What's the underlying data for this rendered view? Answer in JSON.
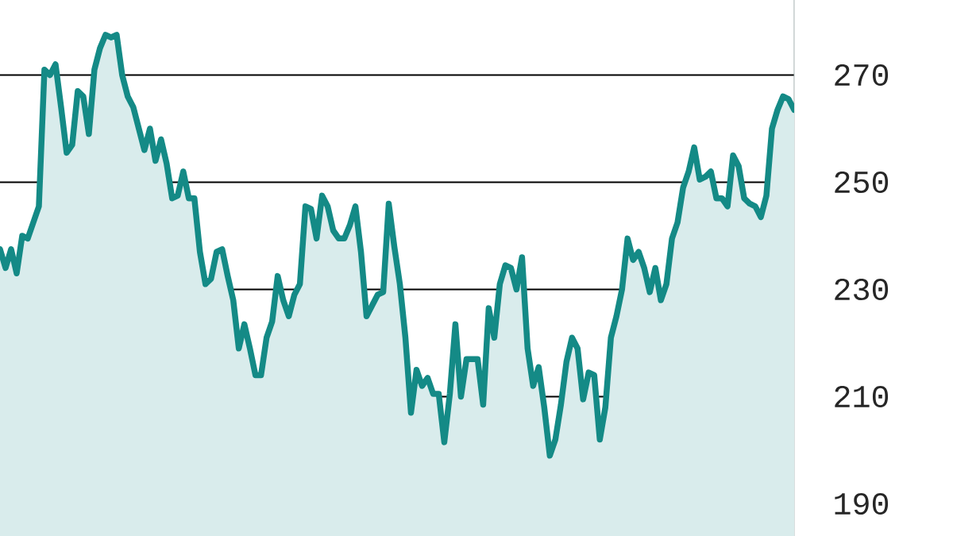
{
  "chart_data": {
    "type": "area",
    "categories": [
      null,
      null,
      null,
      null,
      null,
      null,
      null,
      null,
      null,
      null,
      null,
      null,
      null,
      null,
      null,
      null,
      null,
      null,
      null,
      null,
      null,
      null,
      null,
      null,
      null,
      null,
      null,
      null,
      null,
      null,
      null,
      null,
      null,
      null,
      null,
      null,
      null,
      null,
      null,
      null,
      null,
      null,
      null,
      null,
      null,
      null,
      null,
      null,
      null,
      null,
      null,
      null,
      null,
      null,
      null,
      null,
      null,
      null,
      null,
      null,
      null,
      null,
      null,
      null,
      null,
      null,
      null,
      null,
      null,
      null,
      null,
      null,
      null,
      null,
      null,
      null,
      null,
      null,
      null,
      null,
      null,
      null,
      null,
      null,
      null,
      null,
      null,
      null,
      null,
      null,
      null,
      null,
      null,
      null,
      null,
      null,
      null,
      null,
      null,
      null,
      null,
      null,
      null,
      null,
      null,
      null,
      null,
      null,
      null,
      null,
      null,
      null,
      null,
      null,
      null,
      null,
      null,
      null,
      null,
      null,
      null,
      null,
      null,
      null,
      null,
      null,
      null,
      null,
      null,
      null,
      null,
      null,
      null,
      null,
      null,
      null,
      null,
      null,
      null,
      null,
      null,
      null,
      null,
      null
    ],
    "series": [
      {
        "color": "#148a86",
        "values": [
          237.5,
          234,
          237.5,
          233,
          240,
          239.5,
          242.5,
          245.5,
          271,
          270,
          272,
          264,
          255.5,
          257,
          267,
          266,
          259,
          271,
          275,
          277.5,
          277,
          277.5,
          270,
          266,
          264,
          260,
          256,
          260,
          254,
          258,
          253.5,
          247,
          247.5,
          252,
          247,
          247,
          237,
          231,
          232,
          237,
          237.5,
          232.5,
          228,
          219,
          223.5,
          219,
          214,
          214,
          221,
          224,
          232.5,
          228,
          225,
          229,
          231,
          245.5,
          245,
          239.5,
          247.5,
          245.5,
          241,
          239.5,
          239.5,
          242,
          245.5,
          237,
          225,
          227,
          229,
          229.5,
          246,
          238,
          231,
          221,
          207,
          215,
          212,
          213.5,
          210.5,
          210.5,
          201.5,
          210.5,
          223.5,
          210,
          217,
          217,
          217,
          208.5,
          226.5,
          221,
          231,
          234.5,
          234,
          230,
          236,
          219,
          212,
          215.5,
          208,
          199,
          202,
          208.5,
          216.5,
          221,
          219,
          209.5,
          214.5,
          214,
          202,
          208,
          221,
          225,
          230,
          239.5,
          235.5,
          237,
          234,
          229.5,
          234,
          228,
          231,
          239.5,
          242.5,
          249,
          252,
          256.5,
          250.5,
          251,
          252,
          247,
          247,
          245.5,
          255,
          253,
          247,
          246,
          245.5,
          243.5,
          247.5,
          260,
          263.5,
          266,
          265.5,
          263.5
        ]
      }
    ],
    "ylim": [
      184,
      284
    ],
    "yticks": [
      190,
      210,
      230,
      250,
      270
    ],
    "grid": "y"
  }
}
